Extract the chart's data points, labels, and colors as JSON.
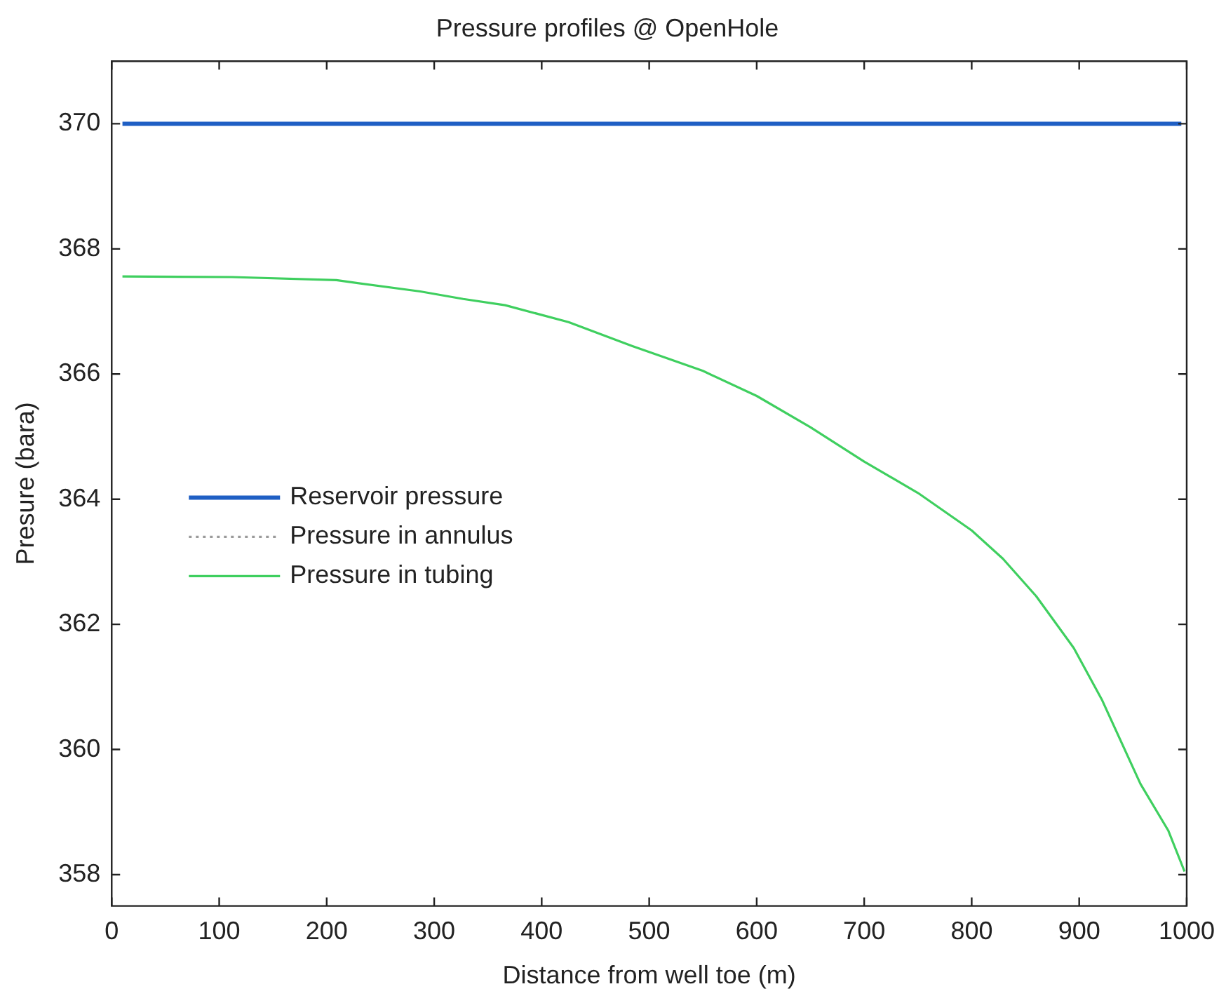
{
  "chart_data": {
    "type": "line",
    "title": "Pressure profiles @ OpenHole",
    "xlabel": "Distance from well toe (m)",
    "ylabel": "Presure (bara)",
    "xlim": [
      0,
      1000
    ],
    "xticks": [
      0,
      100,
      200,
      300,
      400,
      500,
      600,
      700,
      800,
      900,
      1000
    ],
    "ylim": [
      357.5,
      371
    ],
    "yticks": [
      358,
      360,
      362,
      364,
      366,
      368,
      370
    ],
    "grid": false,
    "legend": "left",
    "marker": "none",
    "series": [
      {
        "name": "Reservoir pressure",
        "color": "#1f5fc4",
        "line_style": "solid",
        "x": [
          10,
          995
        ],
        "values": [
          370,
          370
        ]
      },
      {
        "name": "Pressure in annulus",
        "color": "#9a9a9a",
        "line_style": "dotted"
      },
      {
        "name": "Pressure in tubing",
        "color": "#3fcf5f",
        "line_style": "solid",
        "x": [
          10,
          112,
          209,
          287,
          327,
          366,
          425,
          484,
          550,
          600,
          650,
          700,
          750,
          800,
          829,
          860,
          895,
          921,
          957,
          983,
          998
        ],
        "values": [
          367.56,
          367.55,
          367.5,
          367.32,
          367.2,
          367.1,
          366.83,
          366.45,
          366.05,
          365.65,
          365.15,
          364.6,
          364.1,
          363.5,
          363.05,
          362.45,
          361.62,
          360.8,
          359.45,
          358.7,
          358.05
        ]
      }
    ]
  }
}
